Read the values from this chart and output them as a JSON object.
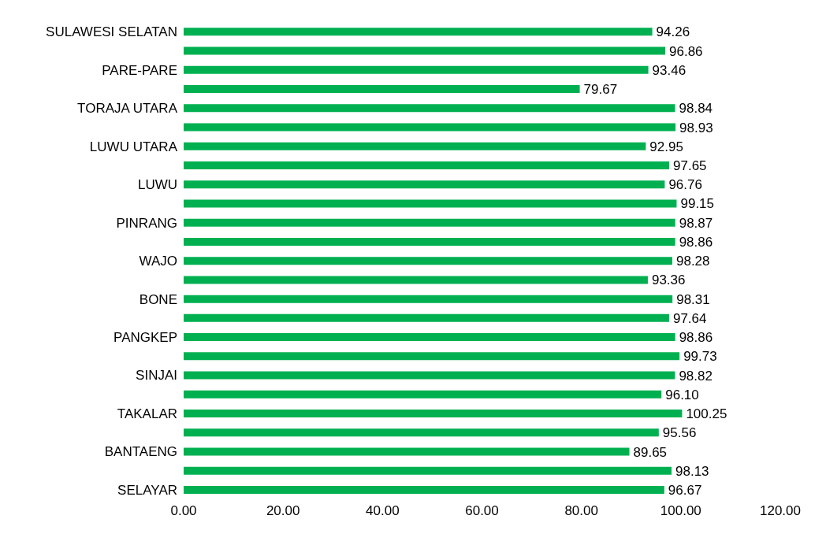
{
  "chart_data": {
    "type": "bar",
    "orientation": "horizontal",
    "categories": [
      "SULAWESI SELATAN",
      null,
      "PARE-PARE",
      null,
      "TORAJA UTARA",
      null,
      "LUWU UTARA",
      null,
      "LUWU",
      null,
      "PINRANG",
      null,
      "WAJO",
      null,
      "BONE",
      null,
      "PANGKEP",
      null,
      "SINJAI",
      null,
      "TAKALAR",
      null,
      "BANTAENG",
      null,
      "SELAYAR"
    ],
    "values": [
      94.26,
      96.86,
      93.46,
      79.67,
      98.84,
      98.93,
      92.95,
      97.65,
      96.76,
      99.15,
      98.87,
      98.86,
      98.28,
      93.36,
      98.31,
      97.64,
      98.86,
      99.73,
      98.82,
      96.1,
      100.25,
      95.56,
      89.65,
      98.13,
      96.67
    ],
    "value_labels": [
      "94.26",
      "96.86",
      "93.46",
      "79.67",
      "98.84",
      "98.93",
      "92.95",
      "97.65",
      "96.76",
      "99.15",
      "98.87",
      "98.86",
      "98.28",
      "93.36",
      "98.31",
      "97.64",
      "98.86",
      "99.73",
      "98.82",
      "96.10",
      "100.25",
      "95.56",
      "89.65",
      "98.13",
      "96.67"
    ],
    "color": "#00b050",
    "xlim": [
      0,
      120
    ],
    "xticks": [
      {
        "value": 0,
        "label": "0.00"
      },
      {
        "value": 20,
        "label": "20.00"
      },
      {
        "value": 40,
        "label": "40.00"
      },
      {
        "value": 60,
        "label": "60.00"
      },
      {
        "value": 80,
        "label": "80.00"
      },
      {
        "value": 100,
        "label": "100.00"
      },
      {
        "value": 120,
        "label": "120.00"
      }
    ]
  }
}
